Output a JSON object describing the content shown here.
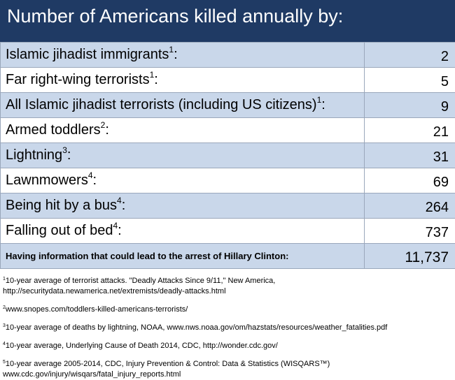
{
  "title": "Number of Americans killed annually by:",
  "rows": [
    {
      "label": "Islamic jihadist immigrants",
      "sup": "1",
      "suffix": ":",
      "value": "2"
    },
    {
      "label": "Far right-wing terrorists",
      "sup": "1",
      "suffix": ":",
      "value": "5"
    },
    {
      "label": "All Islamic jihadist terrorists (including US citizens)",
      "sup": "1",
      "suffix": ":",
      "value": "9"
    },
    {
      "label": "Armed toddlers",
      "sup": "2",
      "suffix": ":",
      "value": "21"
    },
    {
      "label": "Lightning",
      "sup": "3",
      "suffix": ":",
      "value": "31"
    },
    {
      "label": "Lawnmowers",
      "sup": "4",
      "suffix": ":",
      "value": "69"
    },
    {
      "label": "Being hit by a bus",
      "sup": "4",
      "suffix": ":",
      "value": "264"
    },
    {
      "label": "Falling out of bed",
      "sup": "4",
      "suffix": ":",
      "value": "737"
    },
    {
      "label": "Having information that could lead to the arrest of Hillary Clinton:",
      "sup": "",
      "suffix": "",
      "value": "11,737"
    }
  ],
  "footnotes": [
    {
      "mark": "1",
      "line1": "10-year average of terrorist attacks. \"Deadly Attacks Since 9/11,\" New America,",
      "line2": "http://securitydata.newamerica.net/extremists/deadly-attacks.html"
    },
    {
      "mark": "2",
      "line1": "www.snopes.com/toddlers-killed-americans-terrorists/",
      "line2": ""
    },
    {
      "mark": "3",
      "line1": "10-year average of deaths by lightning, NOAA, www.nws.noaa.gov/om/hazstats/resources/weather_fatalities.pdf",
      "line2": ""
    },
    {
      "mark": "4",
      "line1": "10-year average, Underlying Cause of Death 2014, CDC, http://wonder.cdc.gov/",
      "line2": ""
    },
    {
      "mark": "5",
      "line1": "10-year average 2005-2014, CDC, Injury Prevention & Control: Data & Statistics (WISQARS™)",
      "line2": "www.cdc.gov/injury/wisqars/fatal_injury_reports.html"
    }
  ]
}
